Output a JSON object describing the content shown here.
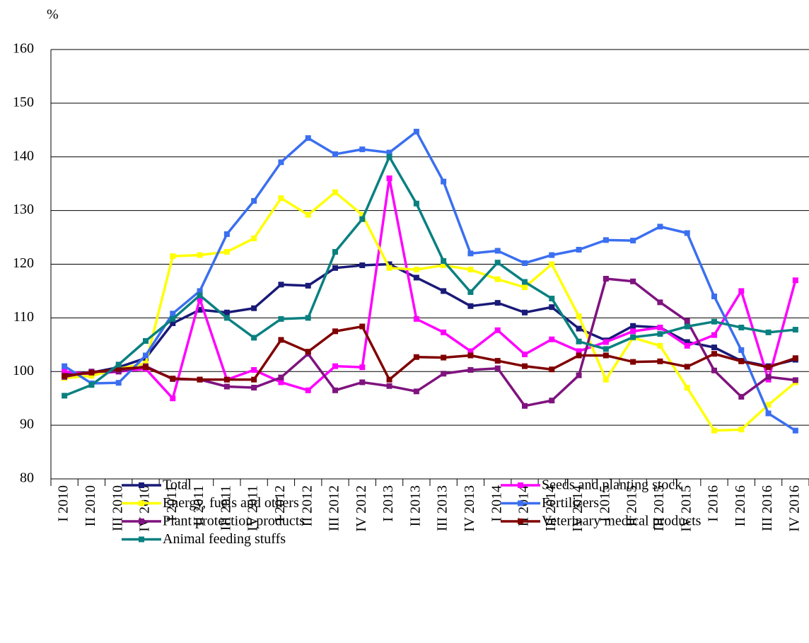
{
  "chart_data": {
    "type": "line",
    "y_label": "%",
    "categories": [
      "I 2010",
      "II 2010",
      "III 2010",
      "IV 2010",
      "I 2011",
      "II 2011",
      "III 2011",
      "IV 2011",
      "I 2012",
      "II 2012",
      "III 2012",
      "IV 2012",
      "I 2013",
      "II 2013",
      "III 2013",
      "IV 2013",
      "I 2014",
      "II 2014",
      "III 2014",
      "IV 2014",
      "I 2015",
      "II 2015",
      "III 2015",
      "IV 2015",
      "I 2016",
      "II 2016",
      "III 2016",
      "IV 2016"
    ],
    "ylim": [
      80,
      160
    ],
    "yticks": [
      80,
      90,
      100,
      110,
      120,
      130,
      140,
      150,
      160
    ],
    "grid": true,
    "legend": "bottom",
    "series": [
      {
        "name": "Total",
        "color": "#1a1a78",
        "values": [
          99.5,
          99.8,
          100.8,
          102.5,
          109,
          111.5,
          111,
          111.8,
          116.2,
          116,
          119.3,
          119.8,
          120,
          117.5,
          115,
          112.2,
          112.8,
          111,
          112,
          108,
          105.8,
          108.5,
          108.2,
          105.5,
          104.5,
          102,
          101,
          102.2
        ]
      },
      {
        "name": "Seeds and planting stock",
        "color": "#ff00ff",
        "values": [
          100,
          99.5,
          100,
          100.5,
          95,
          113.5,
          98.5,
          100.3,
          98,
          96.5,
          101,
          100.8,
          136,
          109.8,
          107.3,
          103.8,
          107.7,
          103.2,
          106,
          103.8,
          105.5,
          107.5,
          108.2,
          104.8,
          106.8,
          115,
          98.5,
          117
        ]
      },
      {
        "name": "Energy, fuels and others",
        "color": "#ffff00",
        "values": [
          98.8,
          99.2,
          100.5,
          101.5,
          121.5,
          121.7,
          122.3,
          124.8,
          132.3,
          129.2,
          133.4,
          129.2,
          119.3,
          119,
          119.8,
          119,
          117.2,
          115.7,
          120,
          110.3,
          98.5,
          106.3,
          104.8,
          97,
          89,
          89.2,
          93.8,
          98
        ]
      },
      {
        "name": "Fertilizers",
        "color": "#3b6ff0",
        "values": [
          101,
          97.8,
          97.9,
          103,
          110.8,
          115,
          125.6,
          131.8,
          139,
          143.5,
          140.5,
          141.4,
          140.8,
          144.7,
          135.4,
          122,
          122.5,
          120.2,
          121.7,
          122.7,
          124.5,
          124.4,
          127,
          125.8,
          114,
          104,
          92.2,
          89
        ]
      },
      {
        "name": "Plant protection products",
        "color": "#7f137f",
        "values": [
          99,
          100,
          100,
          101,
          98.6,
          98.5,
          97.2,
          97,
          98.9,
          103.3,
          96.5,
          98,
          97.3,
          96.3,
          99.6,
          100.3,
          100.6,
          93.6,
          94.6,
          99.3,
          117.3,
          116.8,
          112.9,
          109.4,
          100.2,
          95.3,
          99,
          98.4
        ]
      },
      {
        "name": "Veterinary medical products",
        "color": "#800000",
        "values": [
          99.2,
          99.8,
          100.5,
          100.8,
          98.7,
          98.5,
          98.5,
          98.5,
          105.9,
          103.7,
          107.5,
          108.4,
          98.5,
          102.7,
          102.6,
          103,
          102,
          101,
          100.4,
          103,
          103,
          101.8,
          101.9,
          100.9,
          103.3,
          101.9,
          100.8,
          102.5
        ]
      },
      {
        "name": "Animal feeding stuffs",
        "color": "#0a8080",
        "values": [
          95.5,
          97.5,
          101.3,
          105.7,
          109.8,
          114.2,
          110,
          106.3,
          109.8,
          110,
          122.3,
          128.4,
          140,
          131.3,
          120.6,
          114.8,
          120.3,
          116.7,
          113.6,
          105.6,
          104.2,
          106.4,
          107,
          108.4,
          109.3,
          108.2,
          107.3,
          107.8
        ]
      }
    ]
  }
}
